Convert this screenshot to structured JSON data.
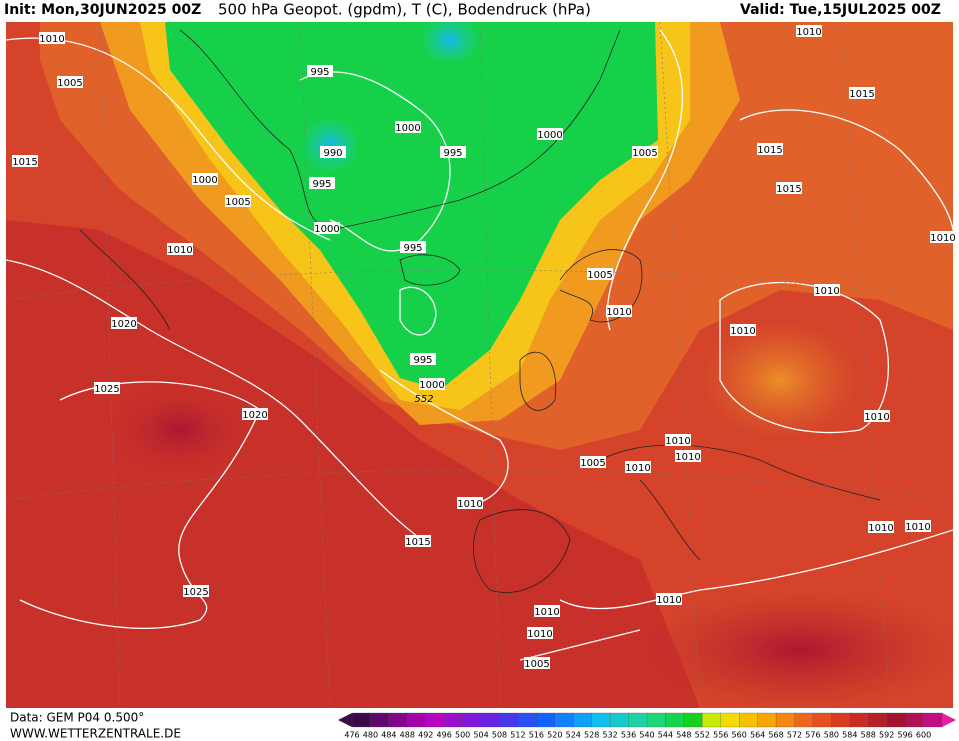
{
  "header": {
    "init": "Init: Mon,30JUN2025 00Z",
    "title": "500 hPa Geopot. (gpdm), T (C), Bodendruck (hPa)",
    "valid": "Valid: Tue,15JUL2025 00Z"
  },
  "isobar_labels": [
    "1010",
    "1005",
    "1015",
    "1000",
    "1005",
    "1010",
    "1020",
    "1025",
    "1020",
    "1025",
    "995",
    "990",
    "995",
    "1000",
    "995",
    "1000",
    "995",
    "995",
    "1000",
    "552",
    "1000",
    "1005",
    "1010",
    "1015",
    "1015",
    "1015",
    "1010",
    "1005",
    "1010",
    "1010",
    "1010",
    "1010",
    "1010",
    "1010",
    "1010",
    "1005",
    "1010",
    "1015",
    "1010",
    "1010",
    "1010",
    "1010",
    "1010",
    "1005"
  ],
  "footer": {
    "data": "Data: GEM P04 0.500°",
    "url": "WWW.WETTERZENTRALE.DE"
  },
  "colorbar": [
    "476",
    "480",
    "484",
    "488",
    "492",
    "496",
    "500",
    "504",
    "508",
    "512",
    "516",
    "520",
    "524",
    "528",
    "532",
    "536",
    "540",
    "544",
    "548",
    "552",
    "556",
    "560",
    "564",
    "568",
    "572",
    "576",
    "580",
    "584",
    "588",
    "592",
    "596",
    "600"
  ]
}
